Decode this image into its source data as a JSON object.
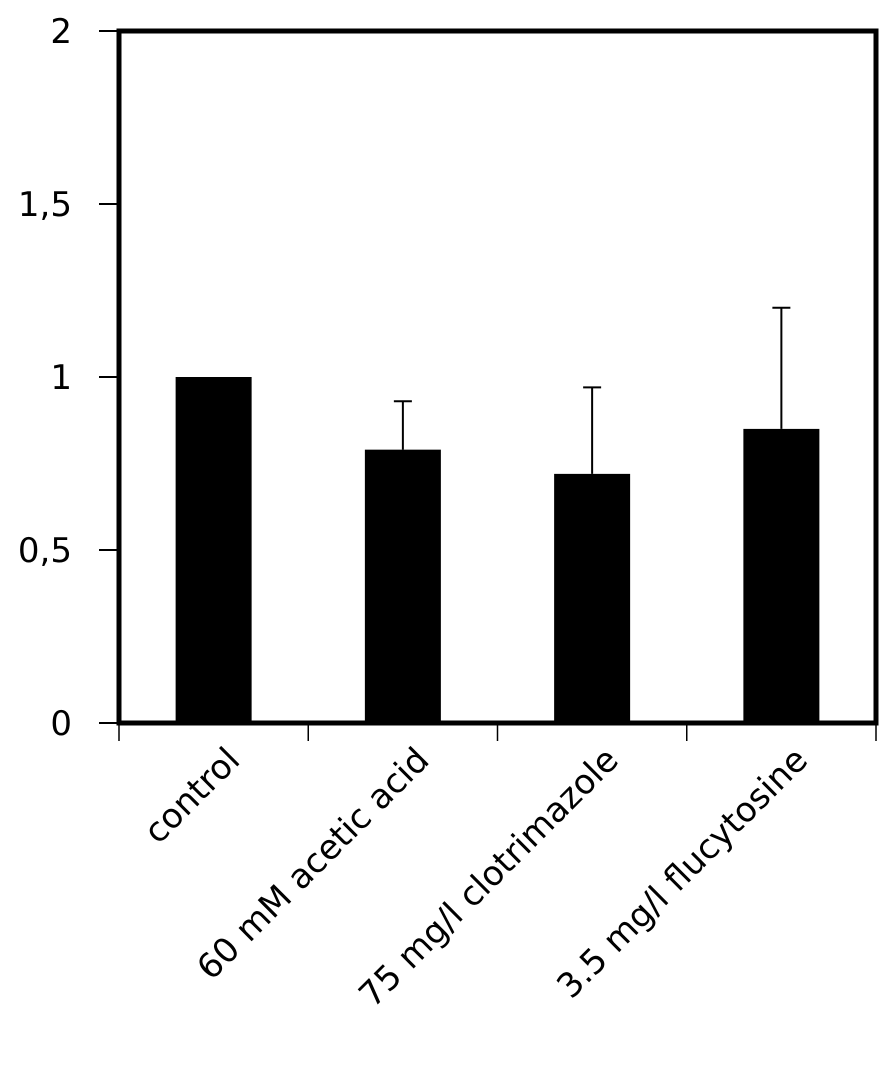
{
  "chart_data": {
    "type": "bar",
    "title": "",
    "xlabel": "",
    "ylabel": "",
    "categories": [
      "control",
      "60 mM acetic acid",
      "75 mg/l clotrimazole",
      "3.5 mg/l flucytosine"
    ],
    "values": [
      1.0,
      0.79,
      0.72,
      0.85
    ],
    "error_upper": [
      0,
      0.14,
      0.25,
      0.35
    ],
    "ylim": [
      0,
      2
    ],
    "yticks": [
      0,
      0.5,
      1,
      1.5,
      2
    ],
    "ytick_labels": [
      "0",
      "0,5",
      "1",
      "1,5",
      "2"
    ],
    "grid": false,
    "legend": "none",
    "bar_color": "#000000"
  }
}
